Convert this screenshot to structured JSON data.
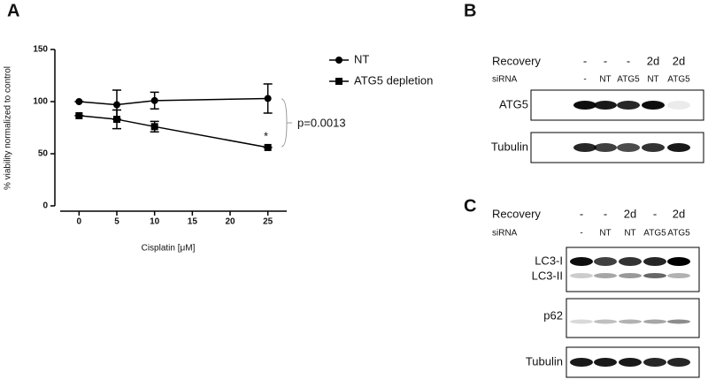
{
  "chart_data": {
    "type": "line",
    "x_label": "Cisplatin [μM]",
    "y_label": "% viability normalized to control",
    "x": [
      0,
      5,
      10,
      25
    ],
    "series": [
      {
        "name": "NT",
        "color": "#000000",
        "marker": "circle",
        "values": [
          100,
          97,
          101,
          103
        ],
        "errors": [
          0,
          14,
          8,
          14
        ]
      },
      {
        "name": "ATG5 depletion",
        "color": "#000000",
        "marker": "square",
        "values": [
          86.5,
          83,
          76,
          56
        ],
        "errors": [
          0,
          9,
          5,
          0
        ]
      }
    ],
    "xlim": [
      -2.5,
      27.5
    ],
    "xticks": [
      0,
      5,
      10,
      15,
      20,
      25
    ],
    "ylim": [
      0,
      150
    ],
    "yticks": [
      0,
      50,
      100,
      150
    ],
    "grid": false,
    "legend": "right",
    "annotations": [
      "p=0.0013",
      "*"
    ]
  },
  "panel_labels": [
    "A",
    "B",
    "C"
  ],
  "blot_b": {
    "row_labels": [
      "Recovery",
      "siRNA"
    ],
    "recovery": [
      "-",
      "-",
      "-",
      "2d",
      "2d"
    ],
    "sirna": [
      "-",
      "NT",
      "ATG5",
      "NT",
      "ATG5"
    ],
    "blots": [
      "ATG5",
      "Tubulin"
    ]
  },
  "blot_c": {
    "row_labels": [
      "Recovery",
      "siRNA"
    ],
    "recovery": [
      "-",
      "-",
      "2d",
      "-",
      "2d"
    ],
    "sirna": [
      "-",
      "NT",
      "NT",
      "ATG5",
      "ATG5"
    ],
    "blots": [
      "LC3-I",
      "LC3-II",
      "p62",
      "Tubulin"
    ]
  }
}
